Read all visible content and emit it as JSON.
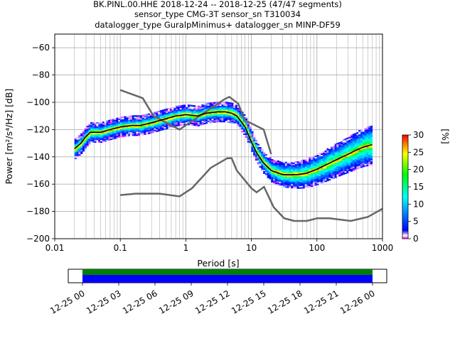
{
  "title": {
    "line1": "BK.PINL.00.HHE   2018-12-24 -- 2018-12-25  (47/47 segments)",
    "line2": "sensor_type CMG-3T sensor_sn T310034",
    "line3": "datalogger_type GuralpMinimus+ datalogger_sn MINP-DF59"
  },
  "chart_data": {
    "type": "heatmap",
    "xlabel": "Period [s]",
    "ylabel": "Power [m²/s⁴/Hz] [dB]",
    "x_scale": "log",
    "xlim": [
      0.01,
      1000
    ],
    "ylim": [
      -200,
      -50
    ],
    "x_ticks": [
      "0.01",
      "0.1",
      "1",
      "10",
      "100",
      "1000"
    ],
    "y_ticks": [
      "−60",
      "−80",
      "−100",
      "−120",
      "−140",
      "−160",
      "−180",
      "−200"
    ],
    "grid": true,
    "colorbar": {
      "label": "[%]",
      "range": [
        0,
        30
      ],
      "ticks": [
        "0",
        "5",
        "10",
        "15",
        "20",
        "25",
        "30"
      ],
      "colormap": [
        "#ff00ff",
        "#ffffff",
        "#0000ff",
        "#00ffff",
        "#00ff00",
        "#ffff00",
        "#ff0000"
      ]
    },
    "colors": {
      "mode_line": "#000000",
      "noise_model": "#666666",
      "grid": "#b0b0b0"
    },
    "mode_line": {
      "x": [
        0.02,
        0.025,
        0.03,
        0.035,
        0.05,
        0.07,
        0.1,
        0.15,
        0.2,
        0.3,
        0.5,
        0.7,
        1,
        1.5,
        2,
        3,
        4,
        5,
        6,
        8,
        10,
        12,
        15,
        20,
        30,
        50,
        70,
        100,
        150,
        200,
        300,
        400,
        500,
        700
      ],
      "y": [
        -134,
        -130,
        -125,
        -122,
        -122,
        -120,
        -118,
        -117,
        -117,
        -115,
        -112,
        -110,
        -109,
        -110,
        -108,
        -107,
        -107,
        -108,
        -110,
        -118,
        -129,
        -137,
        -144,
        -150,
        -153,
        -153,
        -152,
        -149,
        -145,
        -142,
        -138,
        -135,
        -133,
        -131
      ]
    },
    "nhnm": {
      "x": [
        0.1,
        0.22,
        0.32,
        0.8,
        3.8,
        4.6,
        6.3,
        7.9,
        15.4,
        20
      ],
      "y": [
        -91,
        -97,
        -110,
        -120,
        -98,
        -96,
        -101,
        -113,
        -120,
        -138
      ]
    },
    "nlnm": {
      "x": [
        0.1,
        0.17,
        0.4,
        0.8,
        1.24,
        2.4,
        4.3,
        5,
        6,
        10,
        12,
        15.6,
        21.9,
        31.6,
        45,
        70,
        101,
        154,
        328,
        600,
        1000
      ],
      "y": [
        -168,
        -167,
        -167,
        -169,
        -163,
        -148,
        -141,
        -141,
        -150,
        -163,
        -166,
        -162,
        -177,
        -185,
        -187,
        -187,
        -185,
        -185,
        -187,
        -184,
        -178
      ]
    },
    "data_span": {
      "x": [
        0.02,
        700
      ],
      "center_y": [
        -134,
        -130,
        -125,
        -122,
        -122,
        -120,
        -118,
        -117,
        -117,
        -115,
        -112,
        -110,
        -109,
        -110,
        -108,
        -107,
        -107,
        -108,
        -110,
        -118,
        -129,
        -137,
        -144,
        -150,
        -153,
        -153,
        -152,
        -149,
        -145,
        -142,
        -138,
        -135,
        -133,
        -131
      ]
    }
  },
  "timeline": {
    "tick_labels": [
      "12-25 00",
      "12-25 03",
      "12-25 06",
      "12-25 09",
      "12-25 12",
      "12-25 15",
      "12-25 18",
      "12-25 21",
      "12-26 00"
    ],
    "coverage_colors": [
      "#008000",
      "#0000ff"
    ],
    "coverage_fraction": [
      0.0,
      1.0
    ]
  }
}
